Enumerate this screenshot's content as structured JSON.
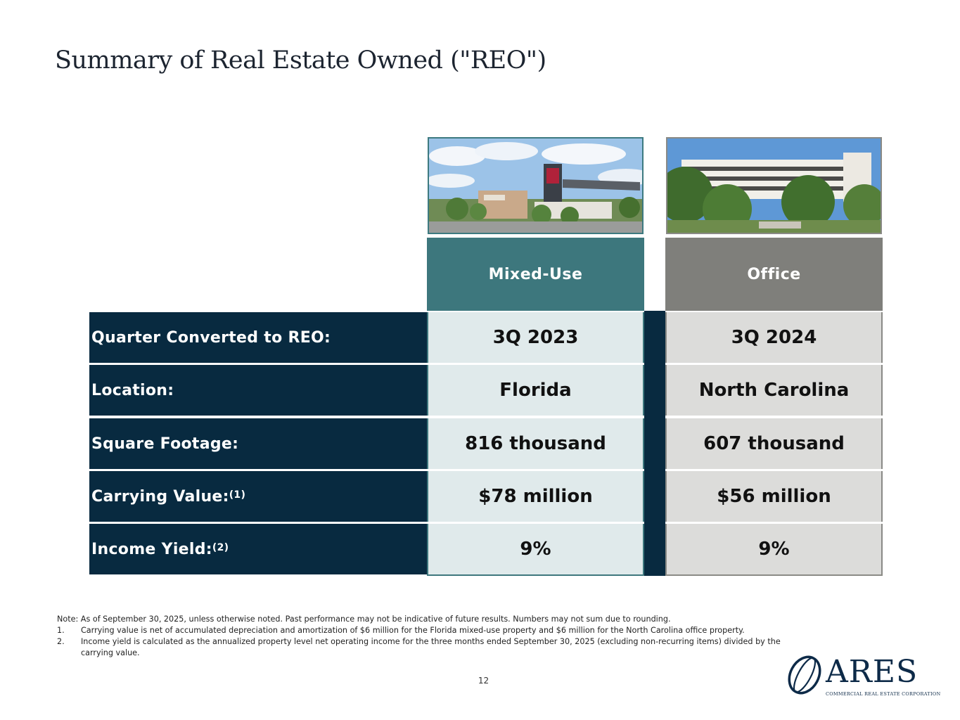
{
  "title": "Summary of Real Estate Owned (\"REO\")",
  "columns": [
    {
      "header": "Mixed-Use",
      "photo": "mixed-use-retail-center-photo"
    },
    {
      "header": "Office",
      "photo": "office-building-photo"
    }
  ],
  "rows": [
    {
      "label": "Quarter Converted to REO:",
      "sup": "",
      "values": [
        "3Q 2023",
        "3Q 2024"
      ]
    },
    {
      "label": "Location:",
      "sup": "",
      "values": [
        "Florida",
        "North Carolina"
      ]
    },
    {
      "label": "Square Footage:",
      "sup": "",
      "values": [
        "816 thousand",
        "607 thousand"
      ]
    },
    {
      "label": "Carrying Value:",
      "sup": "(1)",
      "values": [
        "$78 million",
        "$56 million"
      ]
    },
    {
      "label": "Income Yield:",
      "sup": "(2)",
      "values": [
        "9%",
        "9%"
      ]
    }
  ],
  "notes": {
    "note": "Note: As of September 30, 2025, unless otherwise noted. Past performance may not be indicative of future results. Numbers may not sum due to rounding.",
    "footnotes": [
      {
        "num": "1.",
        "text": "Carrying value is net of accumulated depreciation and amortization of $6 million for the Florida mixed-use property and $6 million for the North Carolina office property."
      },
      {
        "num": "2.",
        "text": "Income yield is calculated as the annualized property level net operating income for the three months ended September 30, 2025 (excluding non-recurring items) divided by the carrying value."
      }
    ]
  },
  "page_number": "12",
  "logo": {
    "name": "ARES",
    "subtitle": "COMMERCIAL REAL ESTATE CORPORATION"
  },
  "colors": {
    "navy": "#082a40",
    "teal": "#3d777d",
    "gray": "#7f7f7b"
  }
}
